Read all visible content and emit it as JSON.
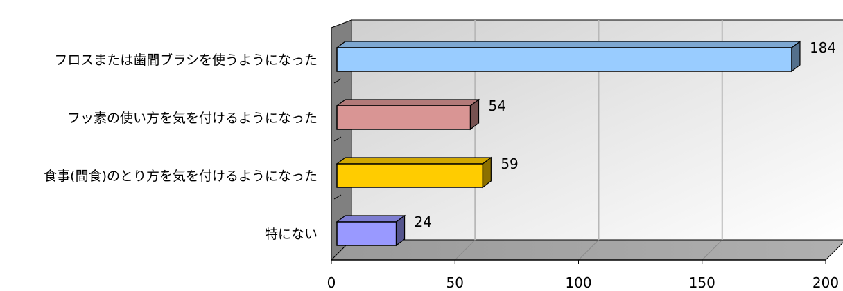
{
  "chart_data": {
    "type": "bar",
    "orientation": "horizontal",
    "title": "",
    "xlabel": "",
    "ylabel": "",
    "categories": [
      "フロスまたは歯間ブラシを使うようになった",
      "フッ素の使い方を気を付けるようになった",
      "食事(間食)のとり方を気を付けるようになった",
      "特にない"
    ],
    "values": [
      184,
      54,
      59,
      24
    ],
    "data_labels": [
      "184",
      "54",
      "59",
      "24"
    ],
    "colors": [
      "#99CCFF",
      "#D99594",
      "#FFCC00",
      "#9999FF"
    ],
    "xlim": [
      0,
      200
    ],
    "xticks": [
      0,
      50,
      100,
      150,
      200
    ],
    "xtick_labels": [
      "0",
      "50",
      "100",
      "150",
      "200"
    ],
    "grid": true,
    "legend": "none"
  }
}
